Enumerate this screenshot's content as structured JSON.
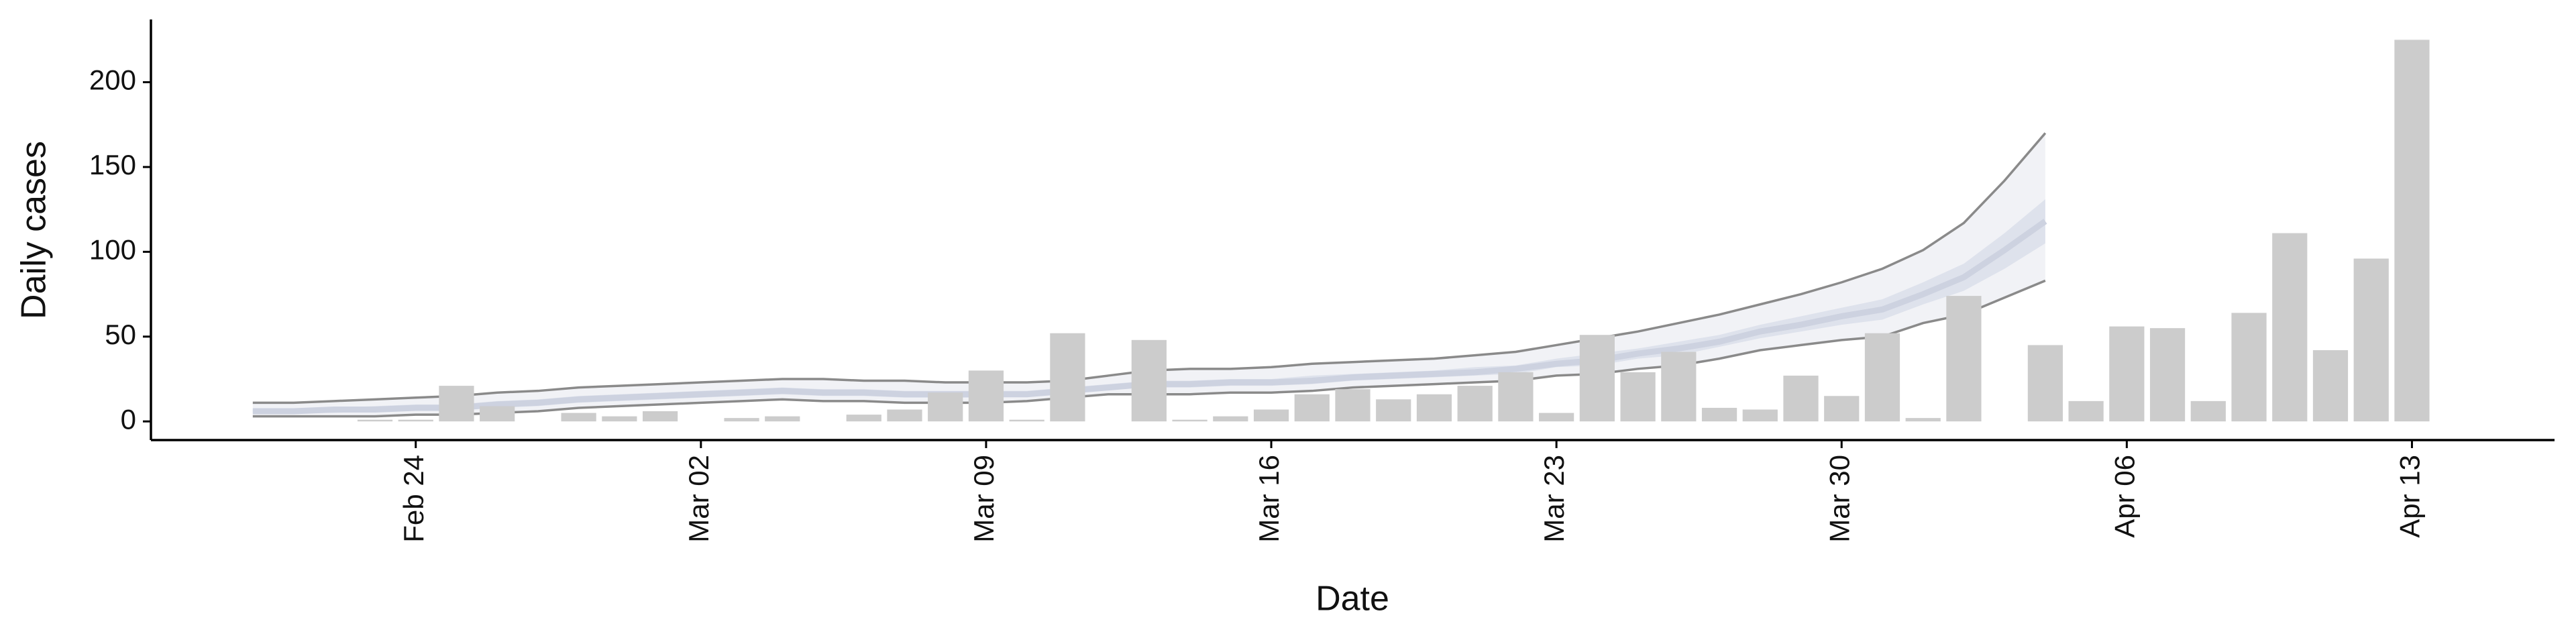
{
  "chart_data": {
    "type": "bar",
    "x_label": "Date",
    "y_label": "Daily cases",
    "categories": [
      null,
      null,
      null,
      null,
      null,
      null,
      "Feb 24",
      null,
      null,
      null,
      null,
      null,
      null,
      "Mar 02",
      null,
      null,
      null,
      null,
      null,
      null,
      "Mar 09",
      null,
      null,
      null,
      null,
      null,
      null,
      "Mar 16",
      null,
      null,
      null,
      null,
      null,
      null,
      "Mar 23",
      null,
      null,
      null,
      null,
      null,
      null,
      "Mar 30",
      null,
      null,
      null,
      null,
      null,
      null,
      "Apr 06",
      null,
      null,
      null,
      null,
      null,
      null,
      "Apr 13",
      null,
      null,
      null
    ],
    "values": [
      null,
      null,
      null,
      null,
      null,
      1,
      1,
      21,
      9,
      null,
      5,
      3,
      6,
      null,
      2,
      3,
      null,
      4,
      7,
      17,
      30,
      1,
      52,
      null,
      48,
      1,
      3,
      7,
      16,
      19,
      13,
      16,
      21,
      29,
      5,
      51,
      29,
      41,
      8,
      7,
      27,
      15,
      52,
      2,
      74,
      null,
      45,
      12,
      56,
      55,
      12,
      64,
      111,
      42,
      96,
      225,
      null,
      null,
      null
    ],
    "color": "#cccccc",
    "bands": [
      {
        "lower": [
          null,
          null,
          3,
          3,
          3,
          3,
          4,
          4,
          5,
          6,
          8,
          9,
          10,
          11,
          12,
          13,
          12,
          12,
          11,
          11,
          11,
          12,
          14,
          16,
          16,
          16,
          17,
          17,
          18,
          20,
          21,
          22,
          23,
          24,
          27,
          28,
          31,
          33,
          37,
          42,
          45,
          48,
          50,
          58,
          63,
          73,
          83,
          null,
          null,
          null,
          null,
          null,
          null,
          null,
          null,
          null,
          null,
          null,
          null
        ],
        "upper": [
          null,
          null,
          11,
          11,
          12,
          13,
          14,
          15,
          17,
          18,
          20,
          21,
          22,
          23,
          24,
          25,
          25,
          24,
          24,
          23,
          23,
          23,
          24,
          27,
          30,
          31,
          31,
          32,
          34,
          35,
          36,
          37,
          39,
          41,
          45,
          49,
          53,
          58,
          63,
          69,
          75,
          82,
          90,
          101,
          117,
          142,
          170,
          null,
          null,
          null,
          null,
          null,
          null,
          null,
          null,
          null,
          null,
          null,
          null
        ],
        "color": "#f1f2f6",
        "edge_color": "#8a8a8a"
      },
      {
        "lower": [
          null,
          null,
          5,
          5,
          5,
          6,
          7,
          7,
          8,
          9,
          11,
          12,
          13,
          14,
          15,
          16,
          15,
          15,
          14,
          14,
          14,
          15,
          17,
          19,
          20,
          20,
          21,
          21,
          22,
          24,
          25,
          26,
          27,
          28,
          32,
          33,
          37,
          39,
          44,
          49,
          53,
          57,
          60,
          69,
          77,
          90,
          105,
          null,
          null,
          null,
          null,
          null,
          null,
          null,
          null,
          null,
          null,
          null,
          null
        ],
        "upper": [
          null,
          null,
          7,
          7,
          8,
          9,
          10,
          10,
          12,
          13,
          15,
          16,
          17,
          18,
          19,
          20,
          19,
          19,
          18,
          18,
          18,
          18,
          20,
          22,
          24,
          24,
          25,
          25,
          27,
          28,
          29,
          30,
          32,
          33,
          37,
          40,
          43,
          47,
          51,
          57,
          62,
          67,
          72,
          82,
          93,
          111,
          131,
          null,
          null,
          null,
          null,
          null,
          null,
          null,
          null,
          null,
          null,
          null,
          null
        ],
        "color": "#dee2ec"
      }
    ],
    "lines": [
      {
        "values": [
          null,
          null,
          6,
          6,
          7,
          7,
          8,
          8,
          10,
          11,
          13,
          14,
          15,
          16,
          17,
          18,
          17,
          17,
          16,
          16,
          16,
          16,
          18,
          20,
          22,
          22,
          23,
          23,
          24,
          26,
          27,
          28,
          29,
          31,
          34,
          36,
          40,
          43,
          47,
          53,
          57,
          62,
          66,
          75,
          85,
          101,
          118,
          null,
          null,
          null,
          null,
          null,
          null,
          null,
          null,
          null,
          null,
          null,
          null
        ],
        "color": "#cdd2e0"
      }
    ],
    "ylim": [
      -11,
      237
    ],
    "yticks": [
      0,
      50,
      100,
      150,
      200
    ]
  }
}
